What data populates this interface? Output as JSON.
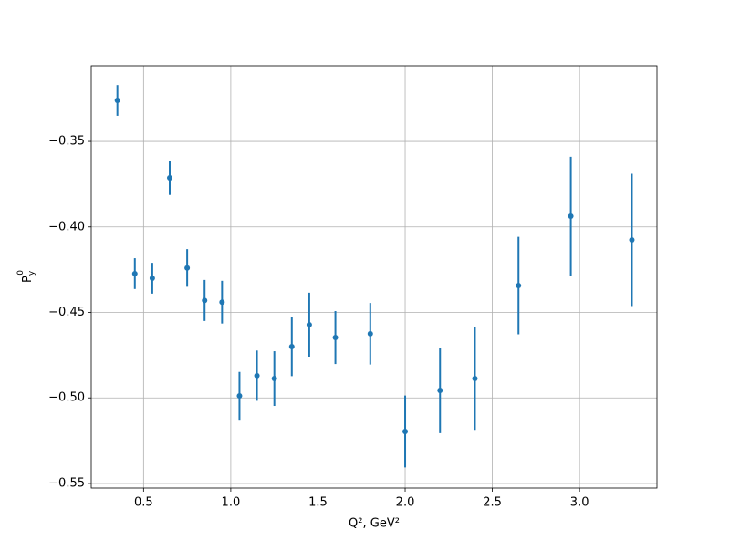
{
  "chart_data": {
    "type": "errorbar",
    "x": [
      0.35,
      0.45,
      0.55,
      0.65,
      0.75,
      0.85,
      0.95,
      1.05,
      1.15,
      1.25,
      1.35,
      1.45,
      1.6,
      1.8,
      2.0,
      2.2,
      2.4,
      2.65,
      2.95,
      3.3
    ],
    "values": [
      -0.326,
      -0.4273,
      -0.43,
      -0.3713,
      -0.424,
      -0.443,
      -0.444,
      -0.4988,
      -0.487,
      -0.4887,
      -0.47,
      -0.4572,
      -0.4647,
      -0.4625,
      -0.5196,
      -0.4956,
      -0.4887,
      -0.4343,
      -0.3937,
      -0.4076
    ],
    "errors": [
      0.009,
      0.009,
      0.009,
      0.01,
      0.011,
      0.012,
      0.0125,
      0.014,
      0.0147,
      0.016,
      0.0173,
      0.0187,
      0.0155,
      0.018,
      0.021,
      0.025,
      0.03,
      0.0285,
      0.0347,
      0.0387
    ],
    "color": "#1f77b4",
    "xlim": [
      0.2,
      3.444
    ],
    "ylim": [
      -0.5527,
      -0.3057
    ],
    "xticks": [
      0.5,
      {
        "value": 1,
        "label": "1.0"
      },
      1.5,
      {
        "value": 2,
        "label": "2.0"
      },
      2.5,
      {
        "value": 3,
        "label": "3.0"
      }
    ],
    "yticks": [
      {
        "value": -0.35,
        "label": "−0.35"
      },
      {
        "value": -0.4,
        "label": "−0.40"
      },
      {
        "value": -0.45,
        "label": "−0.45"
      },
      {
        "value": -0.5,
        "label": "−0.50"
      },
      {
        "value": -0.55,
        "label": "−0.55"
      }
    ],
    "grid": true,
    "xlabel": "Q², GeV²",
    "ylabel": {
      "base": "P",
      "sub": "y",
      "sup": "0"
    }
  }
}
